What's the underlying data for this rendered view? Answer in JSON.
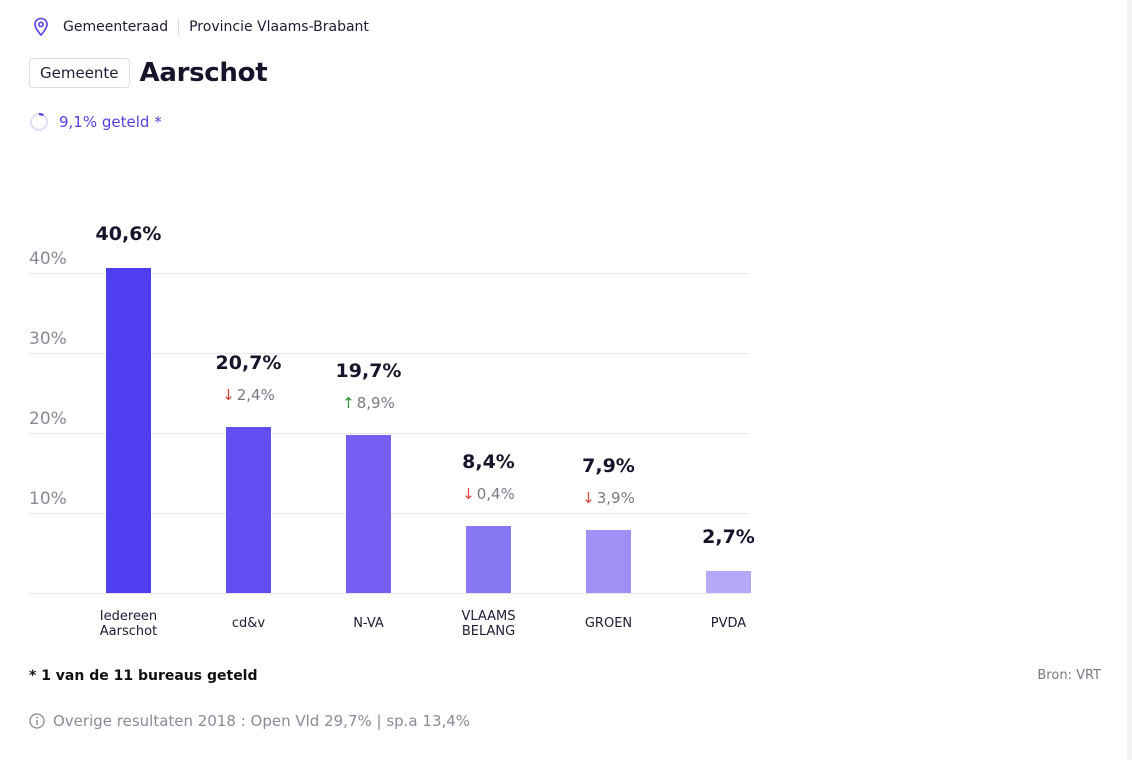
{
  "breadcrumb": {
    "item1": "Gemeenteraad",
    "item2": "Provincie Vlaams-Brabant"
  },
  "header": {
    "tag": "Gemeente",
    "title": "Aarschot"
  },
  "progress": {
    "label": "9,1% geteld *",
    "fraction": 0.091
  },
  "chart_data": {
    "type": "bar",
    "categories": [
      "Iedereen\nAarschot",
      "cd&v",
      "N-VA",
      "VLAAMS\nBELANG",
      "GROEN",
      "PVDA"
    ],
    "values": [
      40.6,
      20.7,
      19.7,
      8.4,
      7.9,
      2.7
    ],
    "value_labels": [
      "40,6%",
      "20,7%",
      "19,7%",
      "8,4%",
      "7,9%",
      "2,7%"
    ],
    "changes": [
      null,
      {
        "direction": "down",
        "label": "2,4%"
      },
      {
        "direction": "up",
        "label": "8,9%"
      },
      {
        "direction": "down",
        "label": "0,4%"
      },
      {
        "direction": "down",
        "label": "3,9%"
      },
      null
    ],
    "yticks": [
      10,
      20,
      30,
      40
    ],
    "ytick_labels": [
      "10%",
      "20%",
      "30%",
      "40%"
    ],
    "ylim": [
      0,
      40
    ],
    "grid": true,
    "colors": [
      "#4f3ff0",
      "#634ff1",
      "#755ff2",
      "#8878f3",
      "#a090f5",
      "#b6a8f7"
    ]
  },
  "footer": {
    "footnote": "* 1 van de 11 bureaus geteld",
    "source": "Bron: VRT",
    "other_results": "Overige resultaten 2018 : Open Vld 29,7% | sp.a 13,4%"
  },
  "icons": {
    "location": "location-pin-icon",
    "info": "info-circle-icon"
  }
}
